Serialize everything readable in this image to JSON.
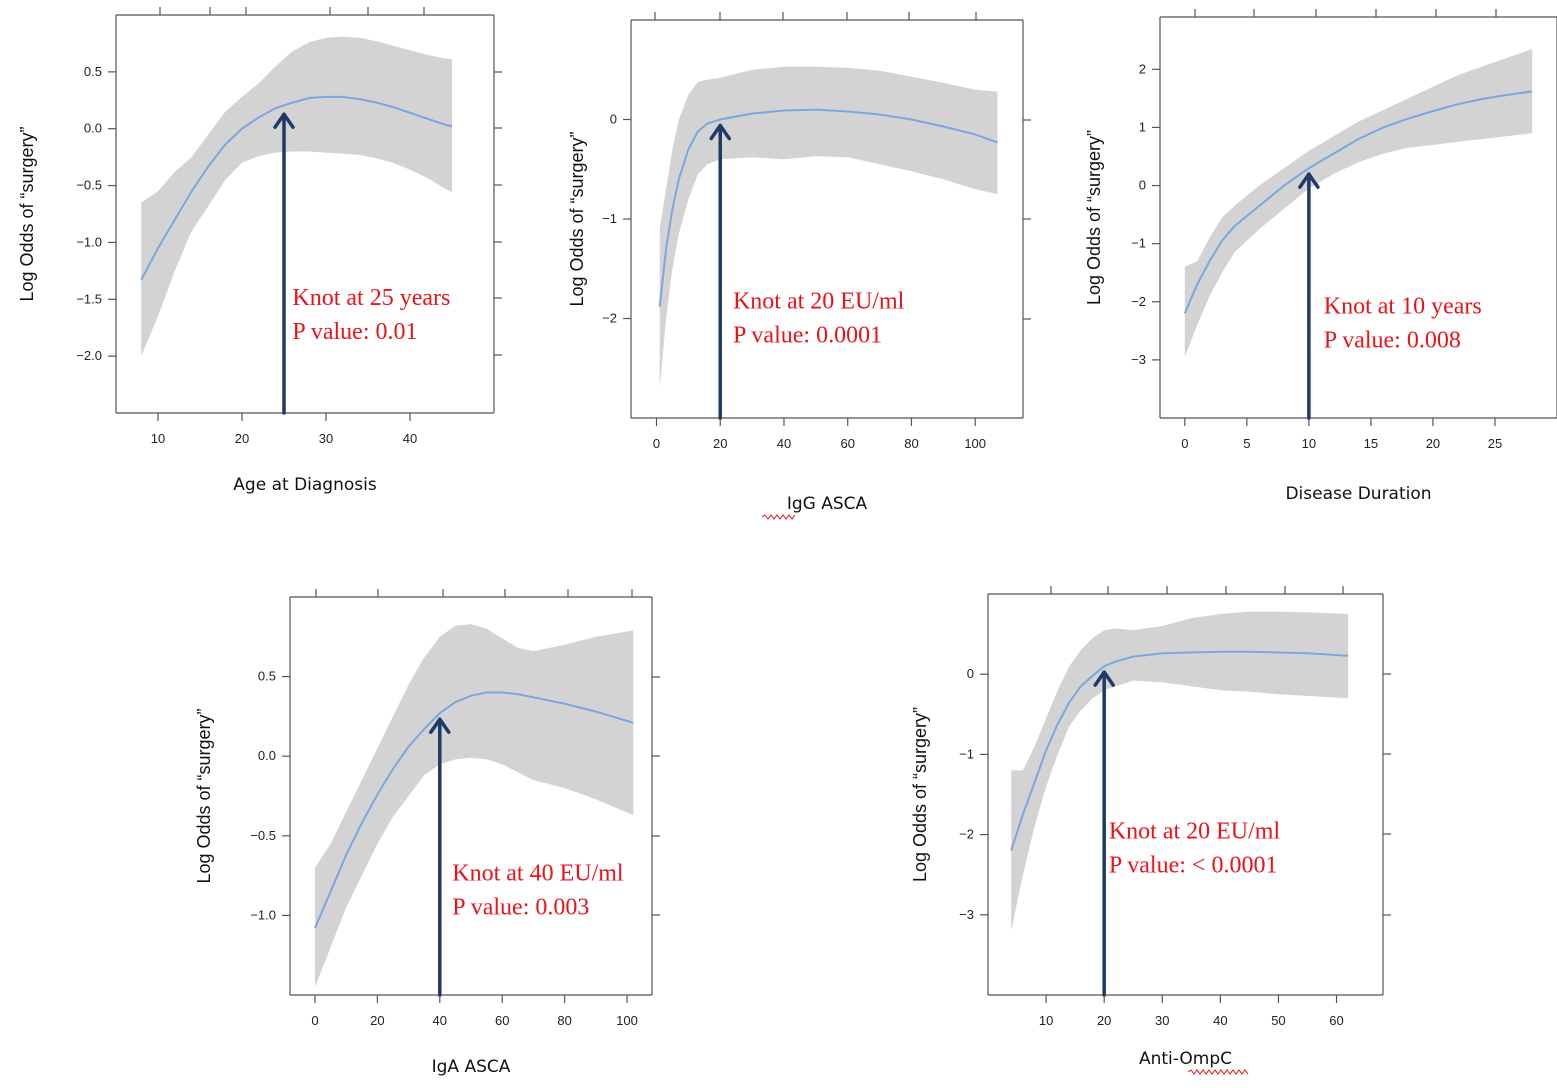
{
  "colors": {
    "band": "#d3d3d3",
    "fit_line": "#7aa7e0",
    "arrow": "#1f3a66",
    "annotation": "#e8141b"
  },
  "chart_data": [
    {
      "type": "line",
      "id": "age",
      "xlabel": "Age at Diagnosis",
      "ylabel": "Log Odds of “surgery”",
      "xlim": [
        5,
        50
      ],
      "ylim": [
        -2.5,
        1.0
      ],
      "xticks": [
        10,
        20,
        30,
        40
      ],
      "yticks": [
        -2.0,
        -1.5,
        -1.0,
        -0.5,
        0.0,
        0.5
      ],
      "ytick_labels": [
        "−2.0",
        "−1.5",
        "−1.0",
        "−0.5",
        "0.0",
        "0.5"
      ],
      "x": [
        8,
        10,
        12,
        14,
        16,
        18,
        20,
        22,
        24,
        26,
        28,
        30,
        32,
        34,
        36,
        38,
        40,
        42,
        44,
        45
      ],
      "fit": [
        -1.33,
        -1.05,
        -0.8,
        -0.55,
        -0.33,
        -0.14,
        0.0,
        0.1,
        0.18,
        0.23,
        0.27,
        0.28,
        0.28,
        0.26,
        0.23,
        0.19,
        0.14,
        0.09,
        0.04,
        0.02
      ],
      "upper": [
        -0.65,
        -0.55,
        -0.38,
        -0.25,
        -0.05,
        0.15,
        0.28,
        0.4,
        0.55,
        0.68,
        0.76,
        0.8,
        0.81,
        0.8,
        0.77,
        0.73,
        0.69,
        0.65,
        0.62,
        0.61
      ],
      "lower": [
        -2.0,
        -1.65,
        -1.25,
        -0.9,
        -0.68,
        -0.45,
        -0.3,
        -0.24,
        -0.21,
        -0.2,
        -0.2,
        -0.21,
        -0.22,
        -0.23,
        -0.26,
        -0.3,
        -0.36,
        -0.43,
        -0.52,
        -0.56
      ],
      "knot_x": 25,
      "knot_label": "Knot at 25 years",
      "p_label": "P value: 0.01",
      "annotation_pos": {
        "x": 26,
        "y": -1.55
      }
    },
    {
      "type": "line",
      "id": "igg",
      "xlabel": "IgG ASCA",
      "ylabel": "Log Odds of “surgery”",
      "xlim": [
        -8,
        115
      ],
      "ylim": [
        -3.0,
        1.0
      ],
      "xticks": [
        0,
        20,
        40,
        60,
        80,
        100
      ],
      "yticks": [
        -2,
        -1,
        0
      ],
      "ytick_labels": [
        "−2",
        "−1",
        "0"
      ],
      "x": [
        1,
        3,
        5,
        7,
        10,
        13,
        16,
        20,
        30,
        40,
        50,
        60,
        70,
        80,
        90,
        100,
        107
      ],
      "fit": [
        -1.88,
        -1.3,
        -0.9,
        -0.6,
        -0.3,
        -0.12,
        -0.04,
        0.0,
        0.06,
        0.09,
        0.1,
        0.08,
        0.05,
        0.0,
        -0.07,
        -0.15,
        -0.23
      ],
      "upper": [
        -1.1,
        -0.7,
        -0.3,
        -0.0,
        0.25,
        0.38,
        0.4,
        0.42,
        0.5,
        0.53,
        0.53,
        0.52,
        0.49,
        0.43,
        0.37,
        0.3,
        0.28
      ],
      "lower": [
        -2.7,
        -2.0,
        -1.5,
        -1.15,
        -0.8,
        -0.55,
        -0.45,
        -0.4,
        -0.38,
        -0.4,
        -0.37,
        -0.38,
        -0.45,
        -0.52,
        -0.6,
        -0.7,
        -0.75
      ],
      "knot_x": 20,
      "knot_label": "Knot at 20 EU/ml",
      "p_label": "P value: 0.0001",
      "annotation_pos": {
        "x": 24,
        "y": -1.9
      }
    },
    {
      "type": "line",
      "id": "duration",
      "xlabel": "Disease Duration",
      "ylabel": "Log Odds of “surgery”",
      "xlim": [
        -2,
        30
      ],
      "ylim": [
        -4.0,
        2.9
      ],
      "xticks": [
        0,
        5,
        10,
        15,
        20,
        25
      ],
      "yticks": [
        -3,
        -2,
        -1,
        0,
        1,
        2
      ],
      "ytick_labels": [
        "−3",
        "−2",
        "−1",
        "0",
        "1",
        "2"
      ],
      "x": [
        0,
        1,
        2,
        3,
        4,
        6,
        8,
        10,
        12,
        14,
        16,
        18,
        20,
        22,
        24,
        26,
        28
      ],
      "fit": [
        -2.2,
        -1.7,
        -1.3,
        -0.95,
        -0.7,
        -0.35,
        0.0,
        0.3,
        0.55,
        0.8,
        1.0,
        1.15,
        1.28,
        1.4,
        1.49,
        1.56,
        1.62
      ],
      "upper": [
        -1.4,
        -1.3,
        -0.9,
        -0.55,
        -0.35,
        0.0,
        0.3,
        0.6,
        0.85,
        1.1,
        1.3,
        1.5,
        1.7,
        1.9,
        2.05,
        2.2,
        2.35
      ],
      "lower": [
        -2.95,
        -2.4,
        -1.9,
        -1.5,
        -1.15,
        -0.75,
        -0.4,
        -0.05,
        0.2,
        0.4,
        0.55,
        0.65,
        0.7,
        0.75,
        0.8,
        0.85,
        0.9
      ],
      "knot_x": 10,
      "knot_label": "Knot at 10 years",
      "p_label": "P value: 0.008",
      "annotation_pos": {
        "x": 11.2,
        "y": -2.2
      }
    },
    {
      "type": "line",
      "id": "iga",
      "xlabel": "IgA ASCA",
      "ylabel": "Log Odds of “surgery”",
      "xlim": [
        -8,
        108
      ],
      "ylim": [
        -1.5,
        1.0
      ],
      "xticks": [
        0,
        20,
        40,
        60,
        80,
        100
      ],
      "yticks": [
        -1.0,
        -0.5,
        0.0,
        0.5
      ],
      "ytick_labels": [
        "−1.0",
        "−0.5",
        "0.0",
        "0.5"
      ],
      "x": [
        0,
        5,
        10,
        15,
        20,
        25,
        30,
        35,
        40,
        45,
        50,
        55,
        60,
        65,
        70,
        80,
        90,
        102
      ],
      "fit": [
        -1.08,
        -0.85,
        -0.62,
        -0.42,
        -0.24,
        -0.08,
        0.06,
        0.17,
        0.27,
        0.34,
        0.38,
        0.4,
        0.4,
        0.39,
        0.37,
        0.33,
        0.28,
        0.21
      ],
      "upper": [
        -0.7,
        -0.55,
        -0.35,
        -0.15,
        0.05,
        0.25,
        0.45,
        0.62,
        0.75,
        0.82,
        0.83,
        0.8,
        0.74,
        0.68,
        0.66,
        0.7,
        0.75,
        0.79
      ],
      "lower": [
        -1.45,
        -1.2,
        -0.95,
        -0.75,
        -0.55,
        -0.38,
        -0.25,
        -0.12,
        -0.05,
        -0.02,
        -0.01,
        -0.02,
        -0.05,
        -0.1,
        -0.15,
        -0.2,
        -0.27,
        -0.37
      ],
      "knot_x": 40,
      "knot_label": "Knot at 40 EU/ml",
      "p_label": "P value: 0.003",
      "annotation_pos": {
        "x": 44,
        "y": -0.78
      }
    },
    {
      "type": "line",
      "id": "ompc",
      "xlabel": "Anti-OmpC",
      "ylabel": "Log Odds of “surgery”",
      "xlim": [
        0,
        68
      ],
      "ylim": [
        -4.0,
        1.0
      ],
      "xticks": [
        10,
        20,
        30,
        40,
        50,
        60
      ],
      "yticks": [
        -3,
        -2,
        -1,
        0
      ],
      "ytick_labels": [
        "−3",
        "−2",
        "−1",
        "0"
      ],
      "x": [
        4,
        6,
        8,
        10,
        12,
        14,
        16,
        18,
        20,
        22,
        25,
        30,
        35,
        40,
        45,
        50,
        55,
        62
      ],
      "fit": [
        -2.2,
        -1.75,
        -1.35,
        -0.95,
        -0.62,
        -0.35,
        -0.15,
        -0.02,
        0.1,
        0.16,
        0.22,
        0.26,
        0.27,
        0.28,
        0.28,
        0.27,
        0.26,
        0.23
      ],
      "upper": [
        -1.2,
        -1.2,
        -0.9,
        -0.55,
        -0.2,
        0.1,
        0.3,
        0.45,
        0.55,
        0.57,
        0.55,
        0.6,
        0.7,
        0.75,
        0.78,
        0.78,
        0.77,
        0.75
      ],
      "lower": [
        -3.2,
        -2.5,
        -1.9,
        -1.4,
        -1.0,
        -0.65,
        -0.45,
        -0.3,
        -0.2,
        -0.15,
        -0.08,
        -0.1,
        -0.15,
        -0.2,
        -0.22,
        -0.25,
        -0.27,
        -0.3
      ],
      "knot_x": 20,
      "knot_label": "Knot at 20 EU/ml",
      "p_label": "P value: < 0.0001",
      "annotation_pos": {
        "x": 20.8,
        "y": -2.05
      }
    }
  ]
}
